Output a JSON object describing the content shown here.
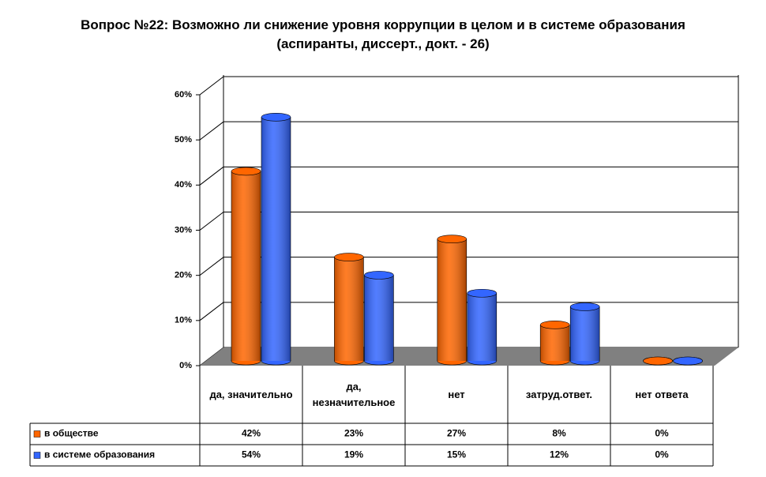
{
  "chart_data": {
    "type": "bar3d",
    "title": "Вопрос №22: Возможно ли снижение уровня коррупции в целом и в системе образования (аспиранты, диссерт., докт. - 26)",
    "categories": [
      "да, значительно",
      "да, незначительное",
      "нет",
      "затруд.ответ.",
      "нет ответа"
    ],
    "series": [
      {
        "name": "в обществе",
        "color": "#ff6600",
        "values": [
          42,
          23,
          27,
          8,
          0
        ],
        "value_labels": [
          "42%",
          "23%",
          "27%",
          "8%",
          "0%"
        ]
      },
      {
        "name": "в системе образования",
        "color": "#3366ff",
        "values": [
          54,
          19,
          15,
          12,
          0
        ],
        "value_labels": [
          "54%",
          "19%",
          "15%",
          "12%",
          "0%"
        ]
      }
    ],
    "ylim": [
      0,
      60
    ],
    "yticks": [
      {
        "value": 0,
        "label": "0%"
      },
      {
        "value": 10,
        "label": "10%"
      },
      {
        "value": 20,
        "label": "20%"
      },
      {
        "value": 30,
        "label": "30%"
      },
      {
        "value": 40,
        "label": "40%"
      },
      {
        "value": 50,
        "label": "50%"
      },
      {
        "value": 60,
        "label": "60%"
      }
    ],
    "grid": true
  }
}
